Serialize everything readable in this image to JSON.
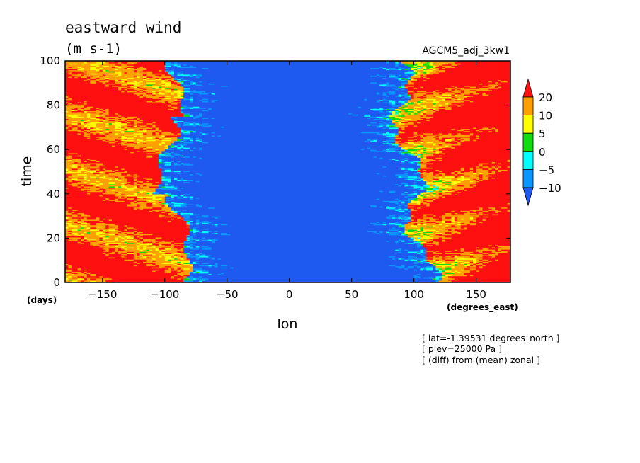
{
  "chart_data": {
    "type": "heatmap",
    "title": "eastward wind",
    "units": "(m s-1)",
    "dataset": "AGCM5_adj_3kw1",
    "xlabel": "lon",
    "ylabel": "time",
    "xunits": "(degrees_east)",
    "yunits": "(days)",
    "xlim": [
      -180,
      177.5
    ],
    "ylim": [
      0,
      100
    ],
    "xticks": [
      -150,
      -100,
      -50,
      0,
      50,
      100,
      150
    ],
    "yticks": [
      0,
      20,
      40,
      60,
      80,
      100
    ],
    "colorbar": {
      "labels": [
        "20",
        "10",
        "5",
        "0",
        "-5",
        "-10"
      ],
      "levels": [
        -10,
        -5,
        0,
        5,
        10,
        20
      ],
      "colors": [
        "#ff1010",
        "#ffa000",
        "#ffff00",
        "#10dc10",
        "#00ffff",
        "#0a96ff",
        "#1e5af0"
      ],
      "extend": "both"
    },
    "annotations": [
      "[ lat=-1.39531 degrees_north ]",
      "[ plev=25000 Pa ]",
      "[ (diff) from (mean) zonal ]"
    ],
    "field_description": "Time-longitude section of eastward wind anomaly: strong westerlies (> 20) west of -100 and east of 130 degrees_east, strong easterlies (< -10) between about -70 and 100 degrees_east."
  }
}
